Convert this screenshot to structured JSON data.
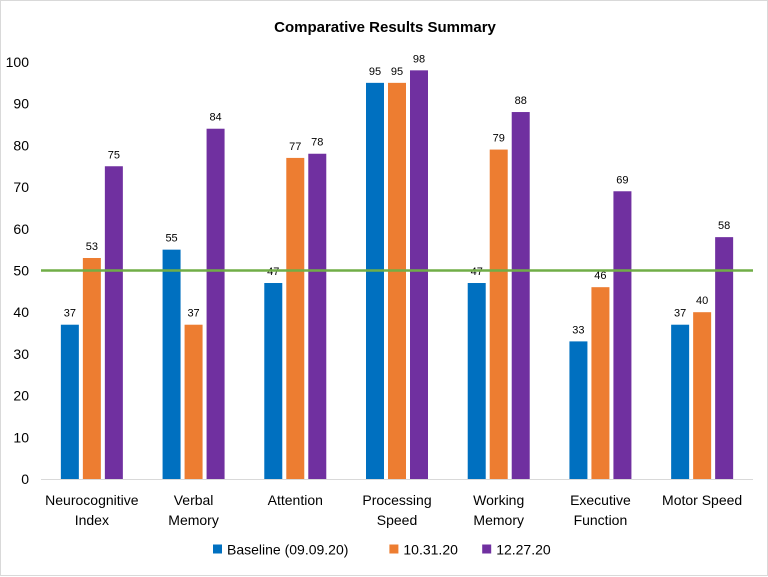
{
  "chart_data": {
    "type": "bar",
    "title": "Comparative Results Summary",
    "xlabel": "",
    "ylabel": "",
    "ylim": [
      0,
      100
    ],
    "yticks": [
      0,
      10,
      20,
      30,
      40,
      50,
      60,
      70,
      80,
      90,
      100
    ],
    "grid": false,
    "legend_position": "bottom",
    "categories": [
      [
        "Neurocognitive",
        "Index"
      ],
      [
        "Verbal",
        "Memory"
      ],
      [
        "Attention"
      ],
      [
        "Processing",
        "Speed"
      ],
      [
        "Working",
        "Memory"
      ],
      [
        "Executive",
        "Function"
      ],
      [
        "Motor Speed"
      ]
    ],
    "series": [
      {
        "name": "Baseline (09.09.20)",
        "color": "#0070c0",
        "values": [
          37,
          55,
          47,
          95,
          47,
          33,
          37
        ]
      },
      {
        "name": "10.31.20",
        "color": "#ed7d31",
        "values": [
          53,
          37,
          77,
          95,
          79,
          46,
          40
        ]
      },
      {
        "name": "12.27.20",
        "color": "#7030a0",
        "values": [
          75,
          84,
          78,
          98,
          88,
          69,
          58
        ]
      }
    ],
    "reference_line": {
      "value": 50,
      "color": "#70ad47"
    }
  }
}
